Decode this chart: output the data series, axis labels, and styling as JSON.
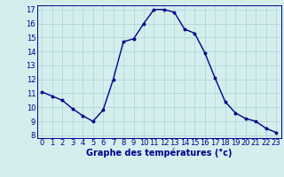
{
  "x": [
    0,
    1,
    2,
    3,
    4,
    5,
    6,
    7,
    8,
    9,
    10,
    11,
    12,
    13,
    14,
    15,
    16,
    17,
    18,
    19,
    20,
    21,
    22,
    23
  ],
  "y": [
    11.1,
    10.8,
    10.5,
    9.9,
    9.4,
    9.0,
    9.8,
    12.0,
    14.7,
    14.9,
    16.0,
    17.0,
    17.0,
    16.8,
    15.6,
    15.3,
    13.9,
    12.1,
    10.4,
    9.6,
    9.2,
    9.0,
    8.5,
    8.2
  ],
  "xlim": [
    -0.5,
    23.5
  ],
  "ylim": [
    7.8,
    17.3
  ],
  "yticks": [
    8,
    9,
    10,
    11,
    12,
    13,
    14,
    15,
    16,
    17
  ],
  "xticks": [
    0,
    1,
    2,
    3,
    4,
    5,
    6,
    7,
    8,
    9,
    10,
    11,
    12,
    13,
    14,
    15,
    16,
    17,
    18,
    19,
    20,
    21,
    22,
    23
  ],
  "xlabel": "Graphe des températures (°c)",
  "line_color": "#00008b",
  "marker": "o",
  "marker_size": 1.8,
  "line_width": 1.0,
  "bg_color": "#d4eeee",
  "grid_color": "#b0d8d8",
  "tick_label_color": "#00008b",
  "xlabel_fontsize": 7.0,
  "tick_fontsize": 6.0,
  "xlabel_fontweight": "bold"
}
